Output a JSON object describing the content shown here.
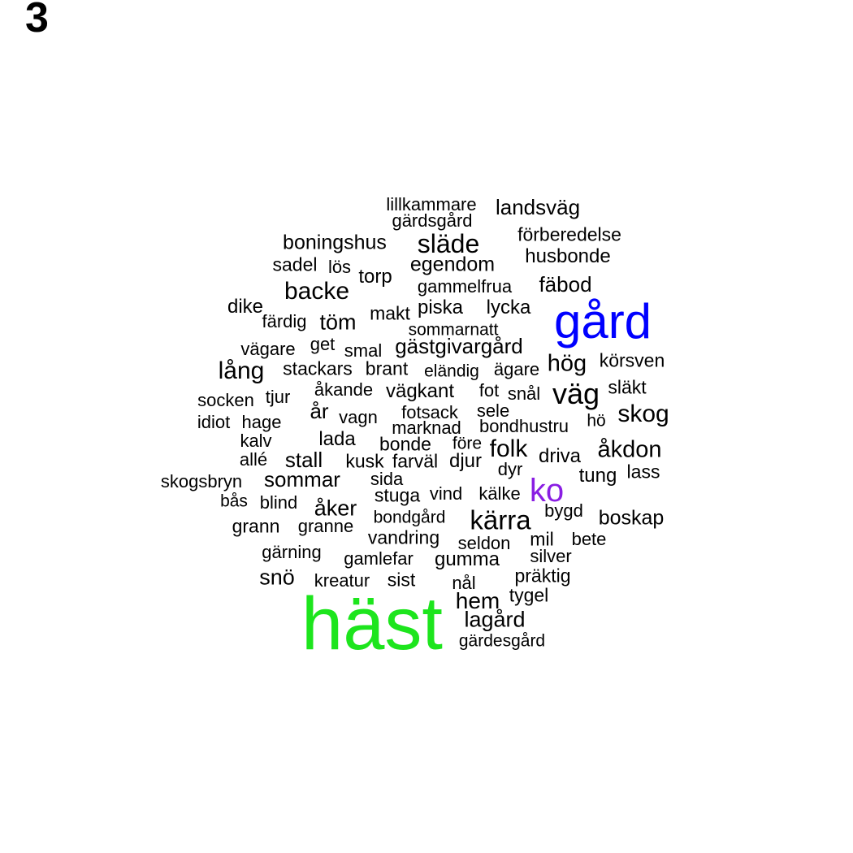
{
  "panel_label": "3",
  "colors": {
    "default": "#000000",
    "green": "#1de51d",
    "blue": "#0000ff",
    "purple": "#8a1ee3"
  },
  "words": [
    {
      "text": "lillkammare"
    },
    {
      "text": "landsväg"
    },
    {
      "text": "gärdsgård"
    },
    {
      "text": "förberedelse"
    },
    {
      "text": "boningshus"
    },
    {
      "text": "släde"
    },
    {
      "text": "husbonde"
    },
    {
      "text": "sadel"
    },
    {
      "text": "lös"
    },
    {
      "text": "egendom"
    },
    {
      "text": "torp"
    },
    {
      "text": "gammelfrua"
    },
    {
      "text": "fäbod"
    },
    {
      "text": "backe"
    },
    {
      "text": "dike"
    },
    {
      "text": "makt"
    },
    {
      "text": "piska"
    },
    {
      "text": "lycka"
    },
    {
      "text": "gård",
      "color": "blue"
    },
    {
      "text": "färdig"
    },
    {
      "text": "töm"
    },
    {
      "text": "sommarnatt"
    },
    {
      "text": "vägare"
    },
    {
      "text": "get"
    },
    {
      "text": "smal"
    },
    {
      "text": "gästgivargård"
    },
    {
      "text": "körsven"
    },
    {
      "text": "lång"
    },
    {
      "text": "stackars"
    },
    {
      "text": "brant"
    },
    {
      "text": "eländig"
    },
    {
      "text": "ägare"
    },
    {
      "text": "hög"
    },
    {
      "text": "åkande"
    },
    {
      "text": "vägkant"
    },
    {
      "text": "fot"
    },
    {
      "text": "snål"
    },
    {
      "text": "väg"
    },
    {
      "text": "släkt"
    },
    {
      "text": "socken"
    },
    {
      "text": "tjur"
    },
    {
      "text": "år"
    },
    {
      "text": "fotsack"
    },
    {
      "text": "sele"
    },
    {
      "text": "skog"
    },
    {
      "text": "idiot"
    },
    {
      "text": "hage"
    },
    {
      "text": "vagn"
    },
    {
      "text": "marknad"
    },
    {
      "text": "bondhustru"
    },
    {
      "text": "hö"
    },
    {
      "text": "kalv"
    },
    {
      "text": "lada"
    },
    {
      "text": "bonde"
    },
    {
      "text": "före"
    },
    {
      "text": "folk"
    },
    {
      "text": "åkdon"
    },
    {
      "text": "allé"
    },
    {
      "text": "stall"
    },
    {
      "text": "kusk"
    },
    {
      "text": "farväl"
    },
    {
      "text": "djur"
    },
    {
      "text": "driva"
    },
    {
      "text": "dyr"
    },
    {
      "text": "lass"
    },
    {
      "text": "tung"
    },
    {
      "text": "skogsbryn"
    },
    {
      "text": "sommar"
    },
    {
      "text": "sida"
    },
    {
      "text": "ko",
      "color": "purple"
    },
    {
      "text": "bås"
    },
    {
      "text": "blind"
    },
    {
      "text": "stuga"
    },
    {
      "text": "vind"
    },
    {
      "text": "kälke"
    },
    {
      "text": "åker"
    },
    {
      "text": "bygd"
    },
    {
      "text": "kärra"
    },
    {
      "text": "boskap"
    },
    {
      "text": "bondgård"
    },
    {
      "text": "grann"
    },
    {
      "text": "granne"
    },
    {
      "text": "vandring"
    },
    {
      "text": "seldon"
    },
    {
      "text": "mil"
    },
    {
      "text": "bete"
    },
    {
      "text": "gärning"
    },
    {
      "text": "gamlefar"
    },
    {
      "text": "gumma"
    },
    {
      "text": "silver"
    },
    {
      "text": "snö"
    },
    {
      "text": "kreatur"
    },
    {
      "text": "sist"
    },
    {
      "text": "nål"
    },
    {
      "text": "präktig"
    },
    {
      "text": "tygel"
    },
    {
      "text": "hem"
    },
    {
      "text": "häst",
      "color": "green"
    },
    {
      "text": "lagård"
    },
    {
      "text": "gärdesgård"
    }
  ]
}
